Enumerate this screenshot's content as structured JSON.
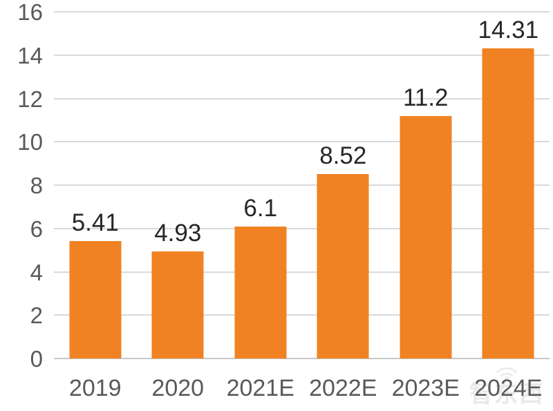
{
  "chart_data": {
    "type": "bar",
    "categories": [
      "2019",
      "2020",
      "2021E",
      "2022E",
      "2023E",
      "2024E"
    ],
    "values": [
      5.41,
      4.93,
      6.1,
      8.52,
      11.2,
      14.31
    ],
    "value_labels": [
      "5.41",
      "4.93",
      "6.1",
      "8.52",
      "11.2",
      "14.31"
    ],
    "title": "",
    "xlabel": "",
    "ylabel": "",
    "ylim": [
      0,
      16
    ],
    "yticks": [
      0,
      2,
      4,
      6,
      8,
      10,
      12,
      14,
      16
    ],
    "grid": true,
    "legend_position": "none",
    "bar_color": "#F08223"
  },
  "colors": {
    "bar": "#F08223",
    "grid_line": "#D9D9D9",
    "axis_line": "#C6C6C6",
    "tick_label": "#595959",
    "data_label": "#262626",
    "background": "#FFFFFF",
    "watermark": "#6F7A80"
  },
  "watermark": {
    "text": "智东西",
    "icon": "wifi-signal-icon"
  }
}
